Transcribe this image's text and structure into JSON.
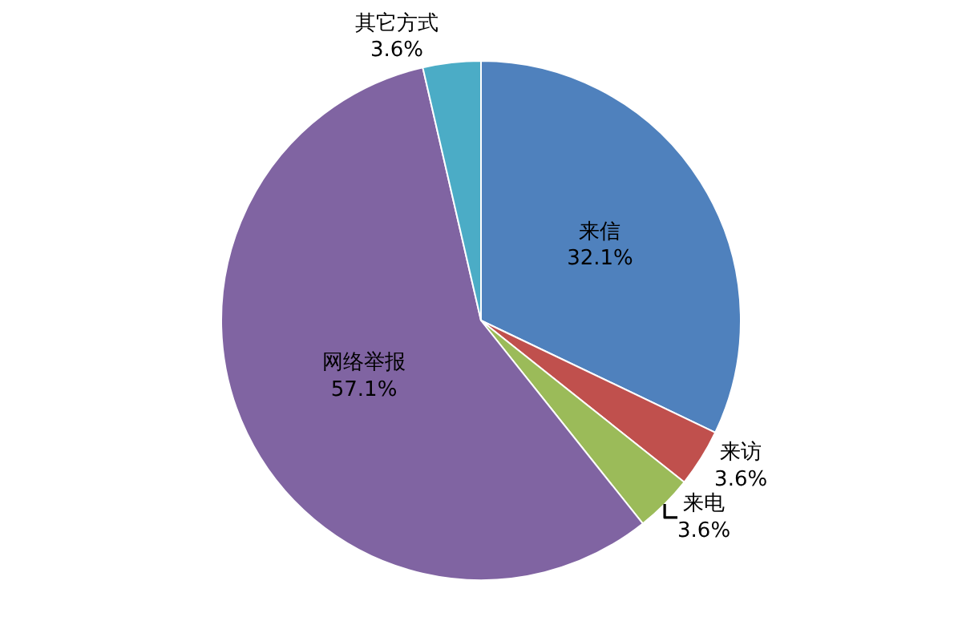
{
  "chart_data": {
    "type": "pie",
    "categories": [
      "来信",
      "来访",
      "来电",
      "网络举报",
      "其它方式"
    ],
    "values": [
      32.1,
      3.6,
      3.6,
      57.1,
      3.6
    ],
    "value_labels": [
      "32.1%",
      "3.6%",
      "3.6%",
      "57.1%",
      "3.6%"
    ],
    "colors": [
      "#4f81bd",
      "#c0504d",
      "#9bbb59",
      "#8064a2",
      "#4bacc6"
    ],
    "legend": false
  }
}
